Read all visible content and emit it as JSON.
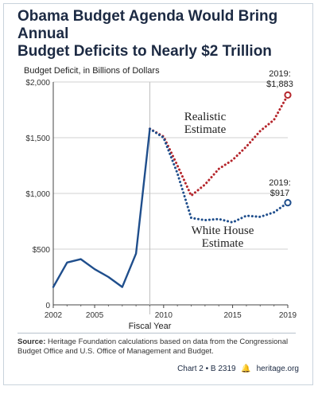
{
  "title_line1": "Obama Budget Agenda Would Bring Annual",
  "title_line2": "Budget Deficits to Nearly $2 Trillion",
  "footer": {
    "source_label": "Source:",
    "source_text": "Heritage Foundation calculations based on data from the Congressional Budget Office and U.S. Office of Management and Budget.",
    "chart_id": "Chart 2 • B 2319",
    "org": "heritage.org",
    "logo_icon": "liberty-bell-icon"
  },
  "colors": {
    "historical": "#1f4e8c",
    "realistic": "#b5262c",
    "whitehouse": "#1f4e8c",
    "title": "#1c2a43",
    "grid": "#d0d0d0"
  },
  "chart_data": {
    "type": "line",
    "ylabel": "Budget Deficit, in Billions of Dollars",
    "xlabel": "Fiscal Year",
    "ylim": [
      0,
      2000
    ],
    "xlim": [
      2002,
      2019
    ],
    "yticks": [
      0,
      500,
      1000,
      1500,
      2000
    ],
    "ytick_labels": [
      "0",
      "$500",
      "$1,000",
      "$1,500",
      "$2,000"
    ],
    "xticks": [
      2002,
      2005,
      2010,
      2015,
      2019
    ],
    "xtick_labels": [
      "2002",
      "2005",
      "2010",
      "2015",
      "2019"
    ],
    "grid": "horizontal",
    "series": [
      {
        "id": "historical",
        "style": "solid",
        "points": [
          [
            2002,
            160
          ],
          [
            2003,
            380
          ],
          [
            2004,
            410
          ],
          [
            2005,
            320
          ],
          [
            2006,
            250
          ],
          [
            2007,
            160
          ],
          [
            2008,
            460
          ],
          [
            2009,
            1580
          ]
        ]
      },
      {
        "id": "realistic",
        "style": "dotted",
        "points": [
          [
            2009,
            1580
          ],
          [
            2010,
            1510
          ],
          [
            2011,
            1250
          ],
          [
            2012,
            980
          ],
          [
            2013,
            1080
          ],
          [
            2014,
            1220
          ],
          [
            2015,
            1300
          ],
          [
            2016,
            1420
          ],
          [
            2017,
            1560
          ],
          [
            2018,
            1660
          ],
          [
            2019,
            1883
          ]
        ]
      },
      {
        "id": "whitehouse",
        "style": "dotted",
        "points": [
          [
            2009,
            1580
          ],
          [
            2010,
            1500
          ],
          [
            2011,
            1180
          ],
          [
            2012,
            780
          ],
          [
            2013,
            760
          ],
          [
            2014,
            770
          ],
          [
            2015,
            740
          ],
          [
            2016,
            800
          ],
          [
            2017,
            790
          ],
          [
            2018,
            830
          ],
          [
            2019,
            917
          ]
        ]
      }
    ],
    "annotations": [
      {
        "id": "realistic-label-1",
        "text": "Realistic",
        "series": "realistic"
      },
      {
        "id": "realistic-label-2",
        "text": "Estimate",
        "series": "realistic"
      },
      {
        "id": "whitehouse-label-1",
        "text": "White House",
        "series": "whitehouse"
      },
      {
        "id": "whitehouse-label-2",
        "text": "Estimate",
        "series": "whitehouse"
      },
      {
        "id": "realistic-end-year",
        "text": "2019:",
        "series": "realistic"
      },
      {
        "id": "realistic-end-value",
        "text": "$1,883",
        "series": "realistic"
      },
      {
        "id": "whitehouse-end-year",
        "text": "2019:",
        "series": "whitehouse"
      },
      {
        "id": "whitehouse-end-value",
        "text": "$917",
        "series": "whitehouse"
      }
    ],
    "vertical_marker": 2009
  }
}
